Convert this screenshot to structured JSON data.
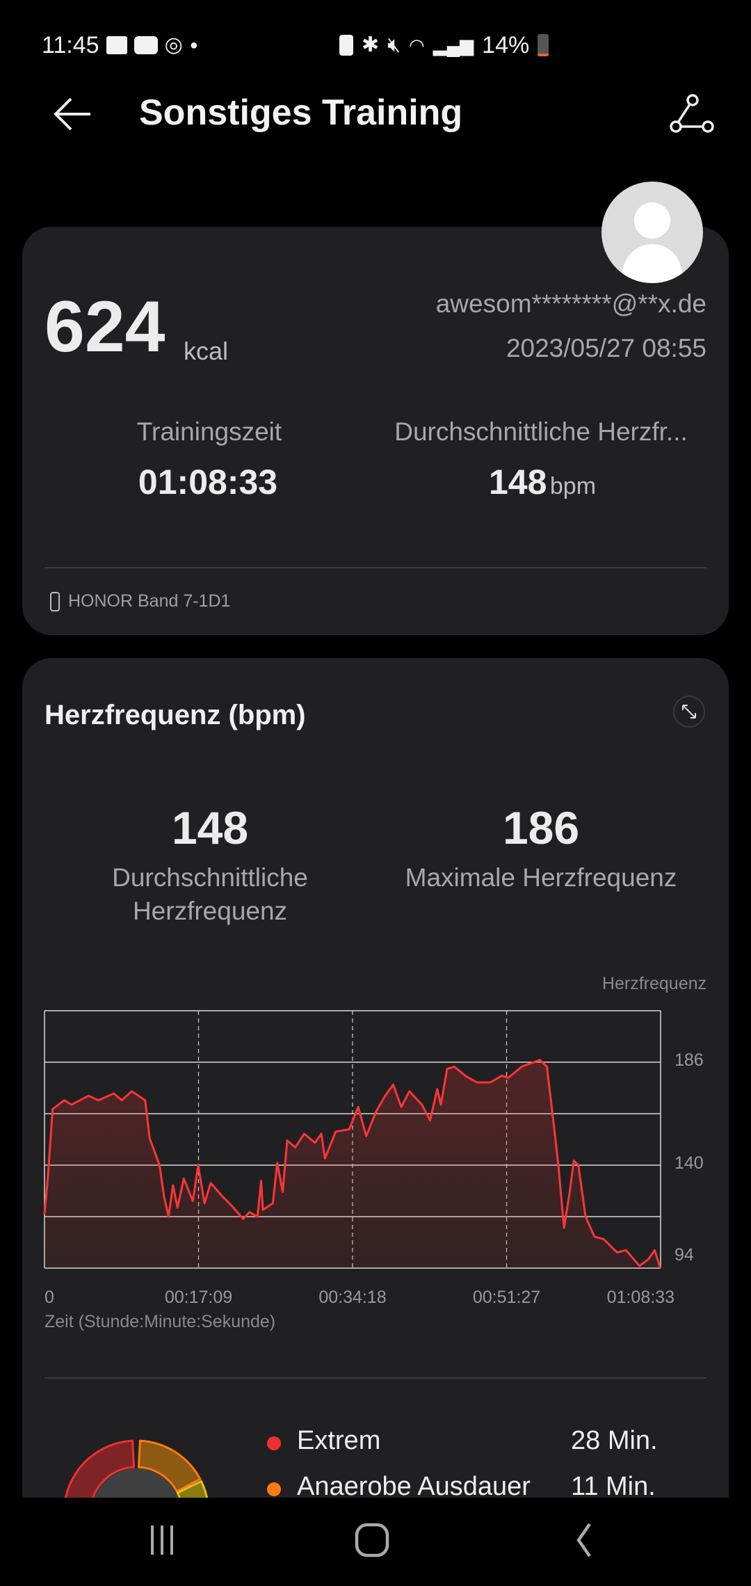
{
  "status_bar": {
    "time": "11:45",
    "left_icons": [
      "gallery-icon",
      "youtube-icon",
      "sync-icon",
      "dot-icon"
    ],
    "right_icons": [
      "battery-saver-icon",
      "bluetooth-icon",
      "mute-icon",
      "wifi-icon",
      "signal-icon"
    ],
    "battery": "14%",
    "battery_level": 0.14,
    "battery_color": "#e8623a"
  },
  "header": {
    "title": "Sonstiges Training",
    "back_icon": "arrow-left-icon",
    "route_icon": "route-icon"
  },
  "summary": {
    "calories": "624",
    "calories_unit": "kcal",
    "account": "awesom********@**x.de",
    "datetime": "2023/05/27 08:55",
    "training_time_label": "Trainingszeit",
    "training_time": "01:08:33",
    "avg_hr_label": "Durchschnittliche Herzfr...",
    "avg_hr": "148",
    "avg_hr_unit": "bpm",
    "device": "HONOR Band 7-1D1"
  },
  "heart_rate": {
    "title": "Herzfrequenz (bpm)",
    "avg_value": "148",
    "avg_label_1": "Durchschnittliche",
    "avg_label_2": "Herzfrequenz",
    "max_value": "186",
    "max_label": "Maximale Herzfrequenz",
    "zones": [
      {
        "name": "Extrem",
        "value": "28 Min.",
        "color": "#f03030"
      },
      {
        "name": "Anaerobe Ausdauer",
        "value": "11 Min.",
        "color": "#ff7a10"
      }
    ]
  },
  "chart_data": {
    "type": "area",
    "legend": "Herzfrequenz",
    "legend_placement": "top-right",
    "xlabel": "Zeit (Stunde:Minute:Sekunde)",
    "xlim": [
      "00:00:00",
      "01:08:33"
    ],
    "x_ticks": [
      "0",
      "00:17:09",
      "00:34:18",
      "00:51:27",
      "01:08:33"
    ],
    "ylim": [
      94,
      209
    ],
    "y_ticks": [
      "186",
      "140",
      "94"
    ],
    "grid": true,
    "line_color": "#ff3535",
    "series": [
      {
        "x": [
          "00:00:00",
          "00:00:24",
          "00:00:54",
          "00:02:12",
          "00:03:00",
          "00:04:54",
          "00:06:00",
          "00:07:42",
          "00:08:36",
          "00:09:42",
          "00:11:12",
          "00:11:42",
          "00:12:48",
          "00:13:18",
          "00:13:48",
          "00:14:18",
          "00:14:48",
          "00:15:30",
          "00:16:30",
          "00:17:06",
          "00:17:48",
          "00:18:30",
          "00:19:48",
          "00:20:48",
          "00:22:06",
          "00:22:48",
          "00:23:42",
          "00:24:06",
          "00:24:18",
          "00:25:24",
          "00:25:54",
          "00:26:30",
          "00:27:00",
          "00:27:54",
          "00:28:54",
          "00:30:06",
          "00:30:48",
          "00:31:12",
          "00:32:24",
          "00:33:54",
          "00:34:54",
          "00:35:48",
          "00:36:54",
          "00:37:54",
          "00:38:48",
          "00:39:42",
          "00:40:36",
          "00:42:00",
          "00:42:54",
          "00:43:42",
          "00:44:06",
          "00:44:48",
          "00:45:36",
          "00:46:48",
          "00:48:06",
          "00:49:36",
          "00:50:54",
          "00:51:36",
          "00:53:06",
          "00:55:06",
          "00:55:54",
          "00:56:42",
          "00:57:12",
          "00:57:48",
          "00:58:24",
          "00:58:54",
          "00:59:24",
          "01:00:12",
          "01:01:12",
          "01:02:12",
          "01:03:42",
          "01:04:42",
          "01:06:12",
          "01:07:12",
          "01:07:54",
          "01:08:30"
        ],
        "y": [
          118,
          136,
          165,
          169,
          167,
          171,
          169,
          172,
          169,
          173,
          169,
          152,
          140,
          126,
          117,
          131,
          121,
          134,
          124,
          140,
          123,
          132,
          126,
          122,
          116,
          119,
          117,
          133,
          120,
          123,
          141,
          128,
          151,
          148,
          154,
          150,
          154,
          143,
          155,
          156,
          166,
          153,
          164,
          171,
          176,
          166,
          173,
          167,
          160,
          174,
          167,
          183,
          184,
          180,
          177,
          177,
          180,
          179,
          184,
          187,
          184,
          157,
          139,
          112,
          127,
          142,
          140,
          117,
          108,
          107,
          101,
          102,
          95,
          98,
          102,
          94
        ]
      }
    ]
  },
  "nav_bar": {
    "icons": [
      "recent-apps-icon",
      "home-icon",
      "back-icon"
    ]
  }
}
